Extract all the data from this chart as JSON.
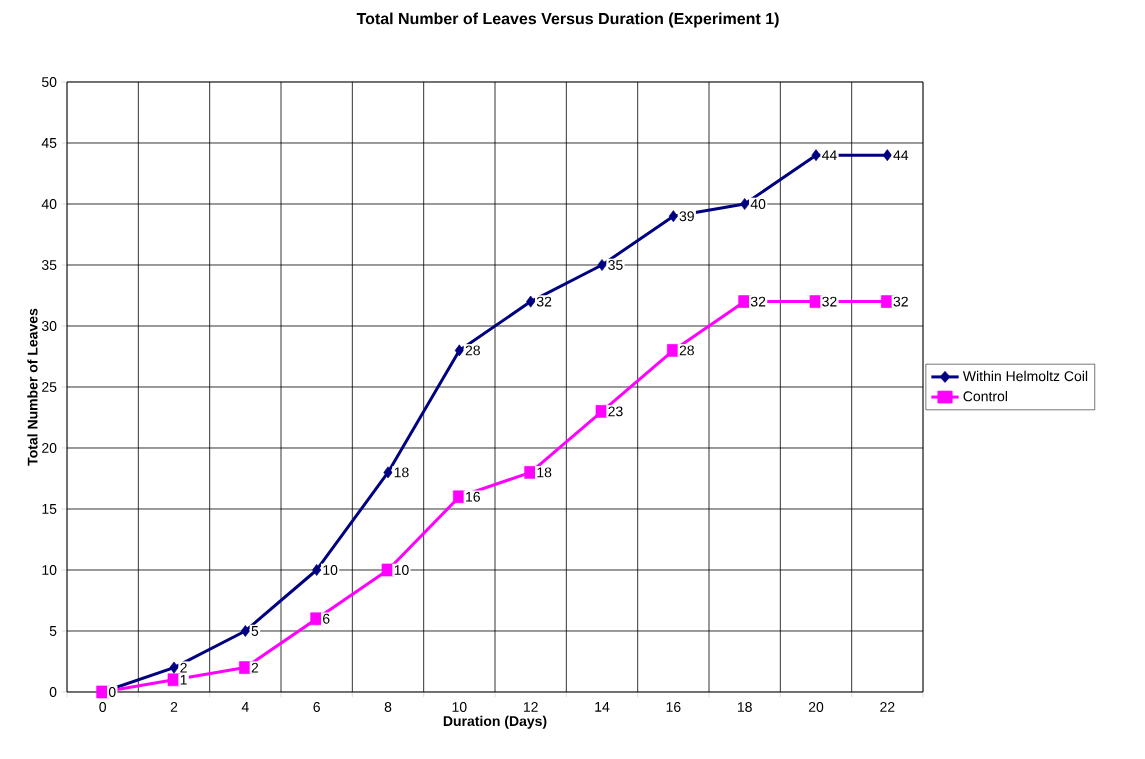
{
  "chart_data": {
    "type": "line",
    "title": "Total Number of Leaves Versus Duration (Experiment 1)",
    "xlabel": "Duration (Days)",
    "ylabel": "Total Number of Leaves",
    "categories": [
      "0",
      "2",
      "4",
      "6",
      "8",
      "10",
      "12",
      "14",
      "16",
      "18",
      "20",
      "22"
    ],
    "series": [
      {
        "name": "Within Helmoltz Coil",
        "color": "#000080",
        "marker": "diamond",
        "values": [
          0,
          2,
          5,
          10,
          18,
          28,
          32,
          35,
          39,
          40,
          44,
          44
        ],
        "value_labels": [
          null,
          "2",
          "5",
          "10",
          "18",
          "28",
          "32",
          "35",
          "39",
          "40",
          "44",
          "44"
        ]
      },
      {
        "name": "Control",
        "color": "#ff00ff",
        "marker": "square",
        "values": [
          0,
          1,
          2,
          6,
          10,
          16,
          18,
          23,
          28,
          32,
          32,
          32
        ],
        "value_labels": [
          "0",
          "1",
          "2",
          "6",
          "10",
          "16",
          "18",
          "23",
          "28",
          "32",
          "32",
          "32"
        ]
      }
    ],
    "ylim": [
      0,
      50
    ],
    "yticks": [
      0,
      5,
      10,
      15,
      20,
      25,
      30,
      35,
      40,
      45,
      50
    ],
    "grid": true,
    "legend": "right",
    "line_style": "solid"
  }
}
